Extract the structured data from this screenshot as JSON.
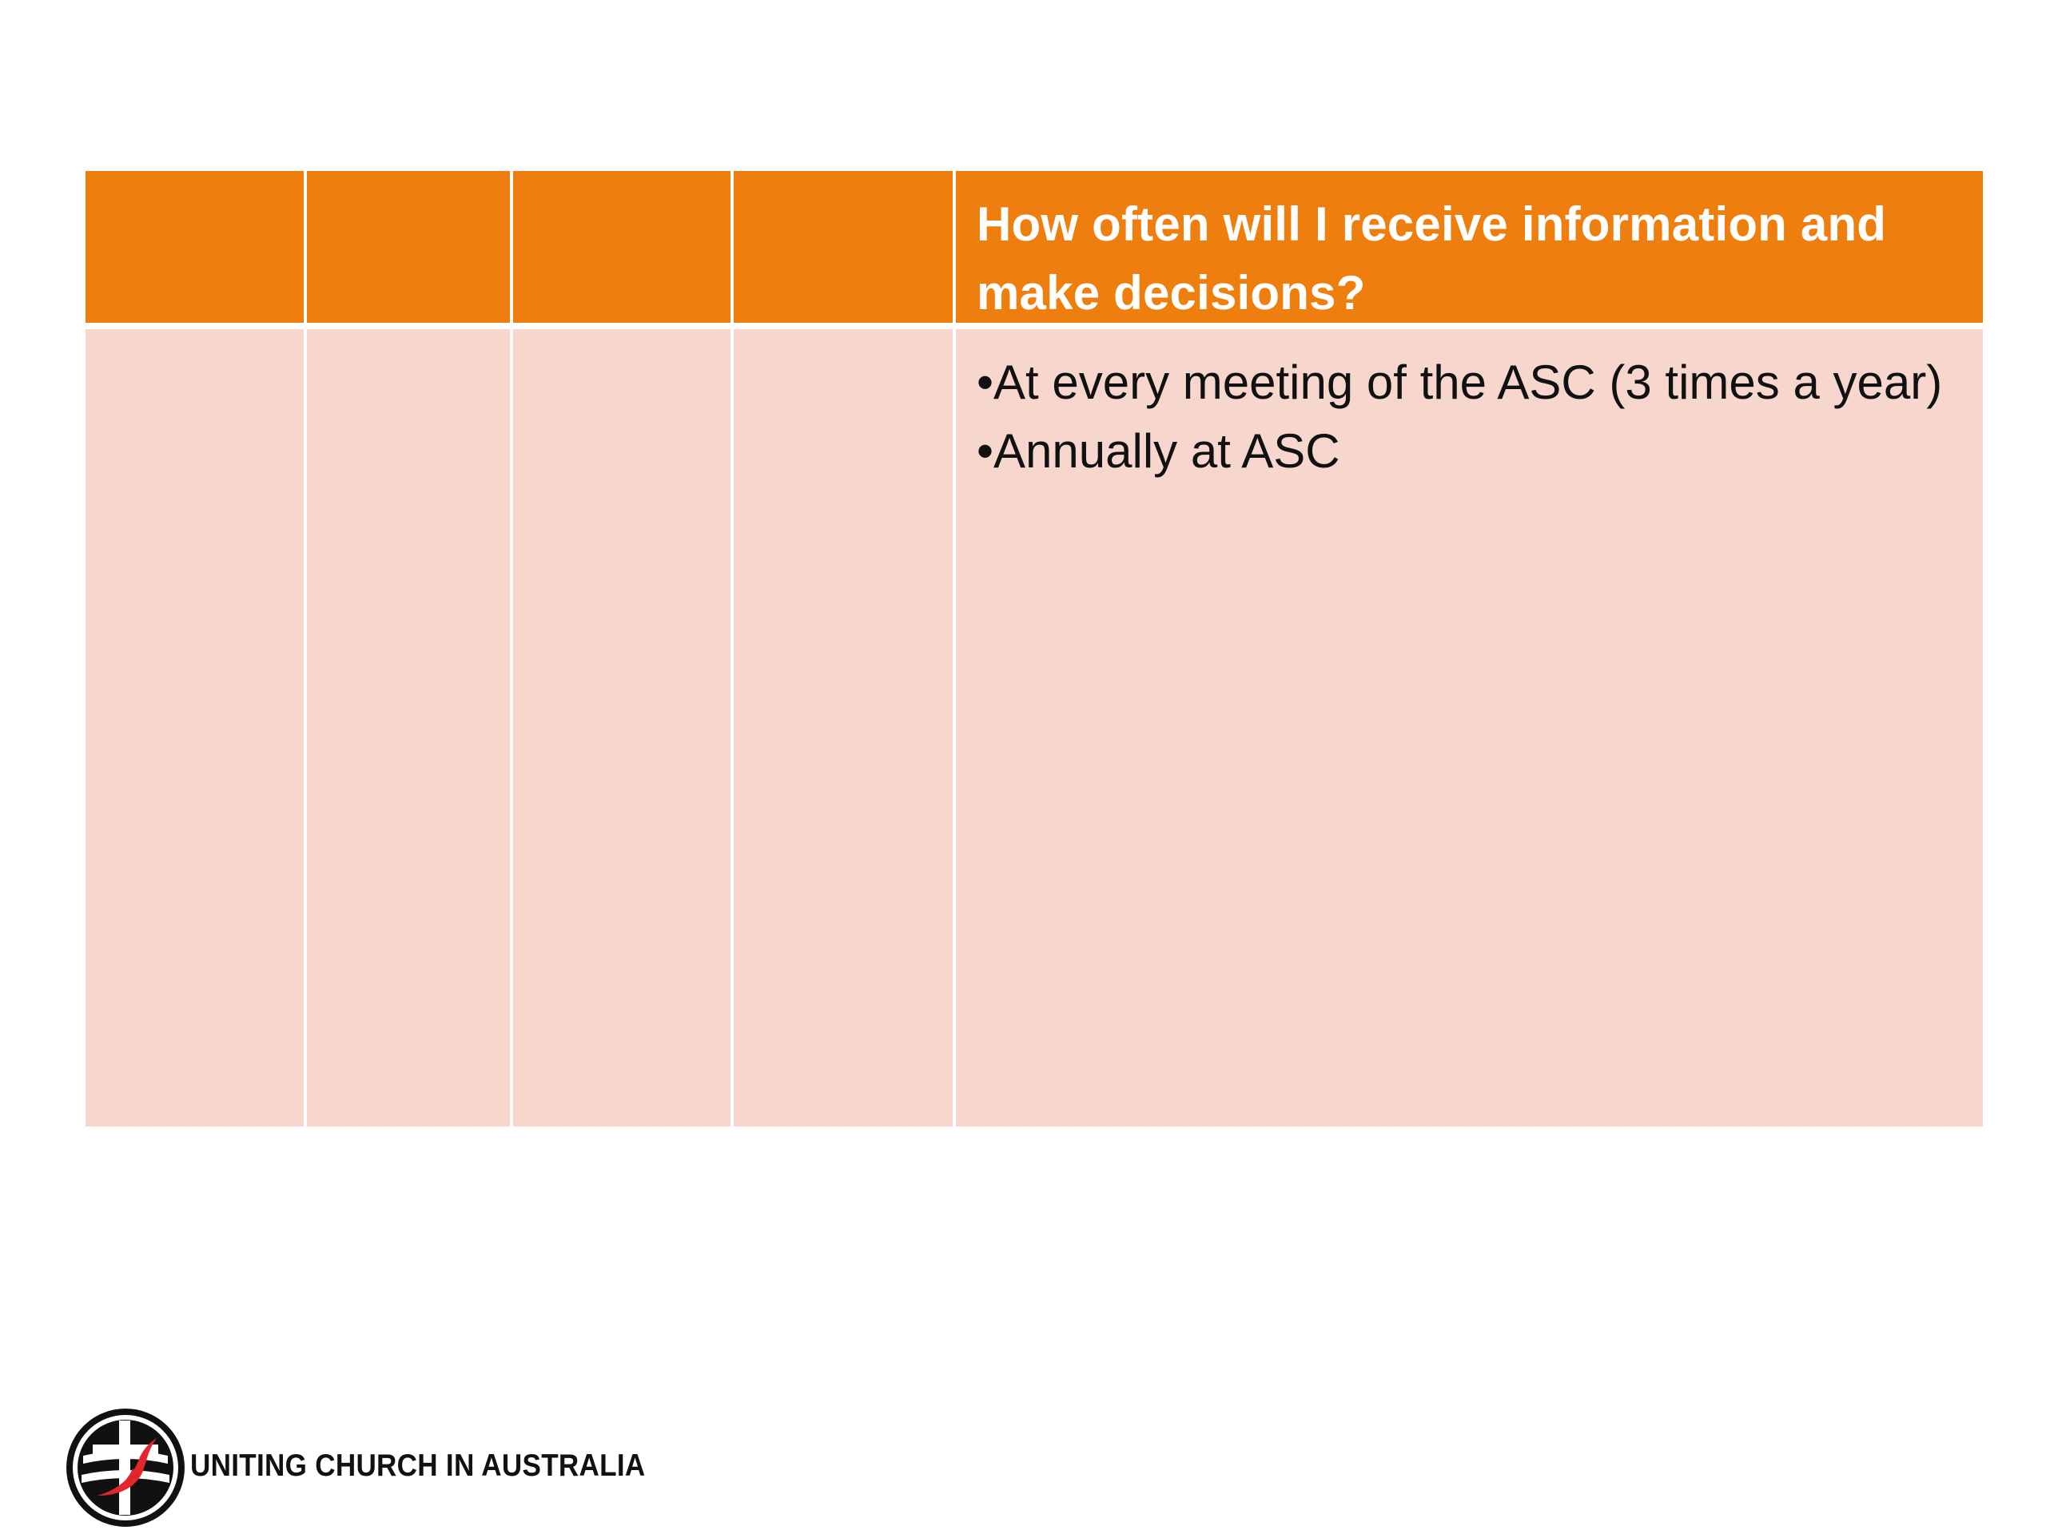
{
  "table": {
    "header": {
      "col5_title": "How often will I receive information and make decisions?"
    },
    "body": {
      "col5_items": [
        "At every meeting of the ASC (3 times a year)",
        "Annually at ASC"
      ],
      "bullet": "•"
    }
  },
  "logo": {
    "name": "uniting-church-logo-icon",
    "text": "UNITING CHURCH IN AUSTRALIA"
  },
  "colors": {
    "header": "#ee7f0f",
    "body": "#f7d7cd",
    "logo_red": "#e3262b"
  }
}
